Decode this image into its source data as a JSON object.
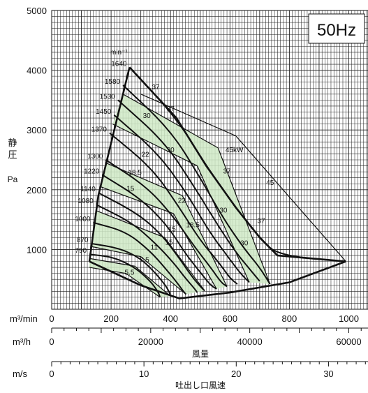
{
  "chart_data": {
    "type": "line",
    "title": "50Hz",
    "rpm_unit": "min⁻¹",
    "ylabel_chars": [
      "静",
      "圧"
    ],
    "ylabel_unit": "Pa",
    "ylim": [
      0,
      5000
    ],
    "y_ticks": [
      1000,
      2000,
      3000,
      4000,
      5000
    ],
    "x_axes": [
      {
        "unit": "m³/min",
        "range": [
          0,
          1000
        ],
        "ticks": [
          0,
          200,
          400,
          600,
          800,
          1000
        ],
        "title": ""
      },
      {
        "unit": "m³/h",
        "range": [
          0,
          60000
        ],
        "ticks": [
          0,
          20000,
          40000,
          60000
        ],
        "title": "風量"
      },
      {
        "unit": "m/s",
        "range": [
          0,
          32.2
        ],
        "ticks": [
          0,
          10,
          20,
          30
        ],
        "title": "吐出し口風速"
      }
    ],
    "grid": true,
    "boundary": {
      "left": [
        [
          127,
          800
        ],
        [
          157,
          1900
        ],
        [
          262,
          4050
        ]
      ],
      "right": [
        [
          262,
          4050
        ],
        [
          420,
          3200
        ],
        [
          520,
          2400
        ],
        [
          620,
          1700
        ],
        [
          700,
          1200
        ],
        [
          760,
          900
        ],
        [
          990,
          800
        ]
      ],
      "bottom": [
        [
          127,
          800
        ],
        [
          300,
          400
        ],
        [
          430,
          180
        ],
        [
          600,
          280
        ],
        [
          800,
          450
        ],
        [
          990,
          800
        ]
      ]
    },
    "speed_curves": [
      {
        "rpm": "1640",
        "points": [
          [
            262,
            4050
          ],
          [
            420,
            3200
          ],
          [
            520,
            2400
          ],
          [
            620,
            1700
          ],
          [
            700,
            1200
          ],
          [
            760,
            900
          ],
          [
            990,
            800
          ]
        ]
      },
      {
        "rpm": "1580",
        "points": [
          [
            240,
            3750
          ],
          [
            400,
            3000
          ],
          [
            500,
            2200
          ],
          [
            580,
            1500
          ],
          [
            650,
            1000
          ],
          [
            700,
            700
          ],
          [
            735,
            420
          ]
        ]
      },
      {
        "rpm": "1530",
        "points": [
          [
            223,
            3500
          ],
          [
            380,
            2800
          ],
          [
            480,
            2050
          ],
          [
            560,
            1400
          ],
          [
            620,
            950
          ],
          [
            670,
            650
          ],
          [
            700,
            470
          ]
        ]
      },
      {
        "rpm": "1450",
        "points": [
          [
            210,
            3250
          ],
          [
            360,
            2600
          ],
          [
            460,
            1900
          ],
          [
            530,
            1300
          ],
          [
            590,
            900
          ],
          [
            635,
            600
          ],
          [
            665,
            450
          ]
        ]
      },
      {
        "rpm": "1370",
        "points": [
          [
            195,
            2950
          ],
          [
            340,
            2350
          ],
          [
            430,
            1700
          ],
          [
            500,
            1150
          ],
          [
            560,
            800
          ],
          [
            600,
            520
          ],
          [
            625,
            420
          ]
        ]
      },
      {
        "rpm": "1300",
        "points": [
          [
            182,
            2500
          ],
          [
            320,
            2050
          ],
          [
            410,
            1550
          ],
          [
            480,
            1050
          ],
          [
            535,
            700
          ],
          [
            570,
            450
          ],
          [
            590,
            380
          ]
        ]
      },
      {
        "rpm": "1220",
        "points": [
          [
            170,
            2250
          ],
          [
            300,
            1850
          ],
          [
            390,
            1400
          ],
          [
            450,
            930
          ],
          [
            500,
            620
          ],
          [
            535,
            400
          ],
          [
            555,
            340
          ]
        ]
      },
      {
        "rpm": "1140",
        "points": [
          [
            157,
            1950
          ],
          [
            290,
            1600
          ],
          [
            370,
            1250
          ],
          [
            430,
            850
          ],
          [
            470,
            560
          ],
          [
            500,
            380
          ],
          [
            515,
            310
          ]
        ]
      },
      {
        "rpm": "1080",
        "points": [
          [
            150,
            1750
          ],
          [
            270,
            1450
          ],
          [
            350,
            1100
          ],
          [
            410,
            780
          ],
          [
            450,
            520
          ],
          [
            480,
            350
          ],
          [
            490,
            280
          ]
        ]
      },
      {
        "rpm": "1000",
        "points": [
          [
            140,
            1450
          ],
          [
            250,
            1300
          ],
          [
            330,
            980
          ],
          [
            380,
            700
          ],
          [
            420,
            460
          ],
          [
            440,
            320
          ],
          [
            452,
            250
          ]
        ]
      },
      {
        "rpm": "870",
        "points": [
          [
            133,
            1100
          ],
          [
            230,
            1020
          ],
          [
            300,
            850
          ],
          [
            350,
            600
          ],
          [
            380,
            420
          ],
          [
            395,
            300
          ],
          [
            400,
            220
          ]
        ]
      },
      {
        "rpm": "790",
        "points": [
          [
            127,
            920
          ],
          [
            210,
            870
          ],
          [
            280,
            700
          ],
          [
            330,
            480
          ],
          [
            350,
            350
          ],
          [
            360,
            270
          ],
          [
            365,
            200
          ]
        ]
      }
    ],
    "power_curves": [
      {
        "kW": "5.5",
        "points": [
          [
            127,
            700
          ],
          [
            250,
            600
          ],
          [
            365,
            200
          ]
        ]
      },
      {
        "kW": "7.5",
        "points": [
          [
            127,
            850
          ],
          [
            280,
            720
          ],
          [
            400,
            220
          ]
        ]
      },
      {
        "kW": "11",
        "points": [
          [
            133,
            1050
          ],
          [
            300,
            880
          ],
          [
            452,
            250
          ]
        ]
      },
      {
        "kW": "15",
        "points": [
          [
            150,
            1650
          ],
          [
            380,
            1200
          ],
          [
            515,
            310
          ]
        ]
      },
      {
        "kW": "18.5",
        "points": [
          [
            165,
            2050
          ],
          [
            410,
            1600
          ],
          [
            555,
            340
          ]
        ]
      },
      {
        "kW": "22",
        "points": [
          [
            182,
            2450
          ],
          [
            440,
            1900
          ],
          [
            590,
            380
          ]
        ]
      },
      {
        "kW": "30",
        "points": [
          [
            205,
            3100
          ],
          [
            490,
            2400
          ],
          [
            665,
            450
          ]
        ]
      },
      {
        "kW": "37",
        "points": [
          [
            240,
            3600
          ],
          [
            560,
            2700
          ],
          [
            735,
            420
          ]
        ]
      },
      {
        "kW": "45",
        "points": [
          [
            300,
            3600
          ],
          [
            620,
            2900
          ],
          [
            990,
            800
          ]
        ]
      }
    ],
    "power_labels": [
      {
        "text": "37",
        "x": 350,
        "y": 3680
      },
      {
        "text": "37",
        "x": 400,
        "y": 3320
      },
      {
        "text": "30",
        "x": 320,
        "y": 3200
      },
      {
        "text": "30",
        "x": 400,
        "y": 2630
      },
      {
        "text": "22",
        "x": 315,
        "y": 2550
      },
      {
        "text": "18.5",
        "x": 280,
        "y": 2250
      },
      {
        "text": "15",
        "x": 265,
        "y": 1980
      },
      {
        "text": "22",
        "x": 438,
        "y": 1780
      },
      {
        "text": "45kW",
        "x": 615,
        "y": 2630
      },
      {
        "text": "37",
        "x": 590,
        "y": 2270
      },
      {
        "text": "45",
        "x": 735,
        "y": 2080
      },
      {
        "text": "30",
        "x": 578,
        "y": 1620
      },
      {
        "text": "18.5",
        "x": 475,
        "y": 1370
      },
      {
        "text": "37",
        "x": 705,
        "y": 1440
      },
      {
        "text": "15",
        "x": 405,
        "y": 1300
      },
      {
        "text": "15",
        "x": 395,
        "y": 1080
      },
      {
        "text": "30",
        "x": 648,
        "y": 1070
      },
      {
        "text": "11",
        "x": 345,
        "y": 1000
      },
      {
        "text": "7.5",
        "x": 312,
        "y": 790
      },
      {
        "text": "5.5",
        "x": 262,
        "y": 580
      }
    ]
  }
}
